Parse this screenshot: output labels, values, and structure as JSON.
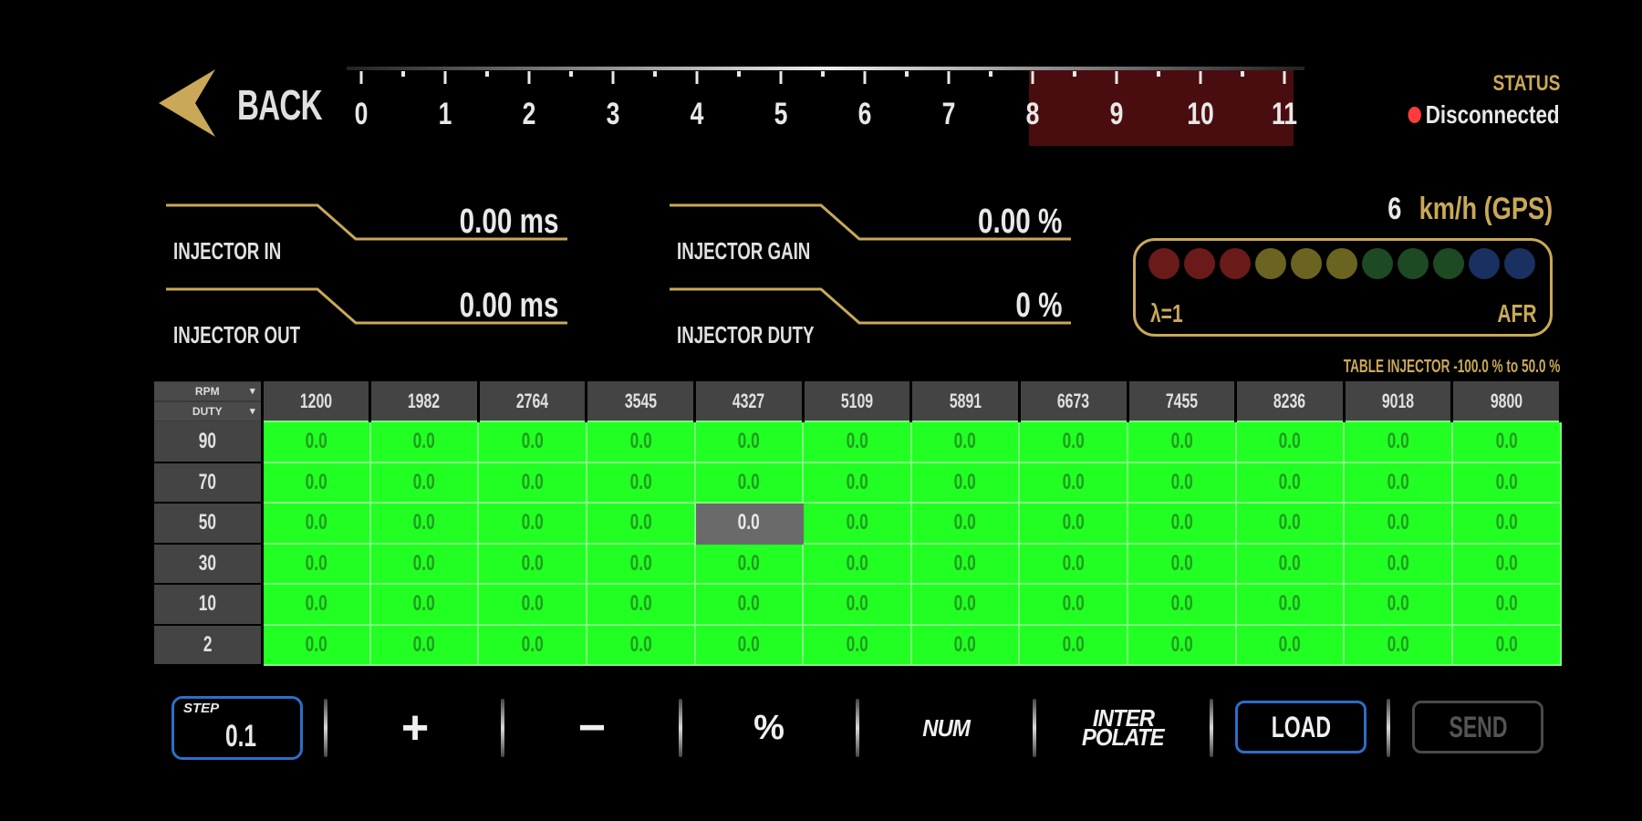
{
  "header": {
    "back_label": "BACK",
    "rpm_ticks": [
      "0",
      "1",
      "2",
      "3",
      "4",
      "5",
      "6",
      "7",
      "8",
      "9",
      "10",
      "11"
    ],
    "redline_from": "8",
    "status_title": "STATUS",
    "status_value": "Disconnected",
    "status_color": "#ff3b3b"
  },
  "readouts": {
    "injector_in": {
      "label": "INJECTOR IN",
      "value": "0.00 ms"
    },
    "injector_out": {
      "label": "INJECTOR OUT",
      "value": "0.00 ms"
    },
    "injector_gain": {
      "label": "INJECTOR GAIN",
      "value": "0.00 %"
    },
    "injector_duty": {
      "label": "INJECTOR DUTY",
      "value": "0 %"
    }
  },
  "speed": {
    "value": "6",
    "unit": "km/h (GPS)"
  },
  "lambda": {
    "left_label": "λ=1",
    "right_label": "AFR",
    "dot_colors": [
      "#6b1a1a",
      "#6b1a1a",
      "#6b1a1a",
      "#6b6420",
      "#6b6420",
      "#6b6420",
      "#1d4a22",
      "#1d4a22",
      "#1d4a22",
      "#1a3060",
      "#1a3060"
    ]
  },
  "table": {
    "caption": "TABLE INJECTOR -100.0 % to 50.0 %",
    "corner_top": "RPM",
    "corner_bottom": "DUTY",
    "columns": [
      "1200",
      "1982",
      "2764",
      "3545",
      "4327",
      "5109",
      "5891",
      "6673",
      "7455",
      "8236",
      "9018",
      "9800"
    ],
    "rows": [
      {
        "label": "90",
        "cells": [
          "0.0",
          "0.0",
          "0.0",
          "0.0",
          "0.0",
          "0.0",
          "0.0",
          "0.0",
          "0.0",
          "0.0",
          "0.0",
          "0.0"
        ]
      },
      {
        "label": "70",
        "cells": [
          "0.0",
          "0.0",
          "0.0",
          "0.0",
          "0.0",
          "0.0",
          "0.0",
          "0.0",
          "0.0",
          "0.0",
          "0.0",
          "0.0"
        ]
      },
      {
        "label": "50",
        "cells": [
          "0.0",
          "0.0",
          "0.0",
          "0.0",
          "0.0",
          "0.0",
          "0.0",
          "0.0",
          "0.0",
          "0.0",
          "0.0",
          "0.0"
        ]
      },
      {
        "label": "30",
        "cells": [
          "0.0",
          "0.0",
          "0.0",
          "0.0",
          "0.0",
          "0.0",
          "0.0",
          "0.0",
          "0.0",
          "0.0",
          "0.0",
          "0.0"
        ]
      },
      {
        "label": "10",
        "cells": [
          "0.0",
          "0.0",
          "0.0",
          "0.0",
          "0.0",
          "0.0",
          "0.0",
          "0.0",
          "0.0",
          "0.0",
          "0.0",
          "0.0"
        ]
      },
      {
        "label": "2",
        "cells": [
          "0.0",
          "0.0",
          "0.0",
          "0.0",
          "0.0",
          "0.0",
          "0.0",
          "0.0",
          "0.0",
          "0.0",
          "0.0",
          "0.0"
        ]
      }
    ],
    "selected": {
      "row": 2,
      "col": 4
    },
    "cell_color": "#22ff22",
    "selected_color": "#6a6a6a"
  },
  "toolbar": {
    "step_label": "STEP",
    "step_value": "0.1",
    "plus": "+",
    "minus": "−",
    "percent": "%",
    "num": "NUM",
    "interpolate_line1": "INTER",
    "interpolate_line2": "POLATE",
    "load": "LOAD",
    "send": "SEND",
    "accent_color": "#2d6ec8"
  },
  "accent_gold": "#c9a957"
}
